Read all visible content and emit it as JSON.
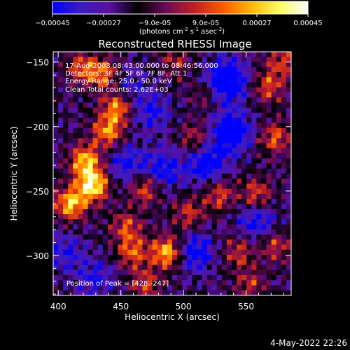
{
  "chart_data": {
    "type": "heatmap",
    "title": "Reconstructed RHESSI Image",
    "xlabel": "Heliocentric X (arcsec)",
    "ylabel": "Heliocentric Y (arcsec)",
    "xlim": [
      396,
      586
    ],
    "ylim": [
      -331,
      -142
    ],
    "x_ticks": [
      "400",
      "450",
      "500",
      "550"
    ],
    "y_ticks": [
      "-150",
      "-200",
      "-250",
      "-300"
    ],
    "colorbar": {
      "min": -0.00045,
      "max": 0.00045,
      "tick_labels": [
        "-0.00045",
        "-0.00027",
        "-9.0e-05",
        "9.0e-05",
        "0.00027",
        "0.00045"
      ],
      "units_label": "(photons cm",
      "units_exp1": "-2",
      "units_mid": " s",
      "units_exp2": "-1",
      "units_mid2": " asec",
      "units_exp3": "-2",
      "units_end": ")",
      "colormap": [
        "#0000ff",
        "#3b1cc0",
        "#5a0fa0",
        "#000000",
        "#6a0a5a",
        "#c02020",
        "#ff5a00",
        "#ffb800",
        "#ffff60",
        "#ffffff"
      ]
    },
    "annotations": [
      "17-Aug-2003 08:43:00.000 to 08:46:56.000",
      "Detectors: 3F 4F 5F 6F 7F 8F, Att 1",
      "Energy Range: 25.0 - 50.0 keV",
      "Clean     Total counts: 2.62E+03"
    ],
    "peak_label": "Position of Peak = [428,-247]",
    "peak": [
      428,
      -247
    ],
    "hot_regions": [
      {
        "x": 428,
        "y": -247,
        "v": 1.0
      },
      {
        "x": 410,
        "y": -262,
        "v": 0.85
      },
      {
        "x": 422,
        "y": -228,
        "v": 0.8
      },
      {
        "x": 440,
        "y": -205,
        "v": 0.7
      },
      {
        "x": 448,
        "y": -185,
        "v": 0.75
      },
      {
        "x": 438,
        "y": -160,
        "v": 0.6
      },
      {
        "x": 420,
        "y": -155,
        "v": 0.55
      },
      {
        "x": 470,
        "y": -250,
        "v": 0.55
      },
      {
        "x": 488,
        "y": -300,
        "v": 0.85
      },
      {
        "x": 460,
        "y": -300,
        "v": 0.55
      },
      {
        "x": 455,
        "y": -280,
        "v": 0.5
      },
      {
        "x": 505,
        "y": -270,
        "v": 0.45
      },
      {
        "x": 530,
        "y": -255,
        "v": 0.5
      },
      {
        "x": 560,
        "y": -255,
        "v": 0.55
      },
      {
        "x": 575,
        "y": -210,
        "v": 0.55
      },
      {
        "x": 570,
        "y": -170,
        "v": 0.5
      },
      {
        "x": 580,
        "y": -150,
        "v": 0.45
      },
      {
        "x": 545,
        "y": -300,
        "v": 0.45
      },
      {
        "x": 575,
        "y": -295,
        "v": 0.45
      },
      {
        "x": 555,
        "y": -325,
        "v": 0.4
      },
      {
        "x": 470,
        "y": -325,
        "v": 0.45
      },
      {
        "x": 510,
        "y": -210,
        "v": 0.4
      },
      {
        "x": 495,
        "y": -150,
        "v": 0.35
      },
      {
        "x": 520,
        "y": -175,
        "v": 0.3
      }
    ],
    "cold_regions": [
      {
        "x": 535,
        "y": -165,
        "v": -0.9
      },
      {
        "x": 540,
        "y": -205,
        "v": -0.75
      },
      {
        "x": 520,
        "y": -230,
        "v": -0.6
      },
      {
        "x": 455,
        "y": -230,
        "v": -0.45
      },
      {
        "x": 560,
        "y": -275,
        "v": -0.5
      },
      {
        "x": 510,
        "y": -300,
        "v": -0.55
      },
      {
        "x": 455,
        "y": -170,
        "v": -0.35
      },
      {
        "x": 475,
        "y": -190,
        "v": -0.4
      },
      {
        "x": 405,
        "y": -300,
        "v": -0.35
      },
      {
        "x": 430,
        "y": -320,
        "v": -0.35
      },
      {
        "x": 485,
        "y": -235,
        "v": -0.5
      }
    ]
  },
  "footer": {
    "date": "4-May-2022 22:26"
  }
}
